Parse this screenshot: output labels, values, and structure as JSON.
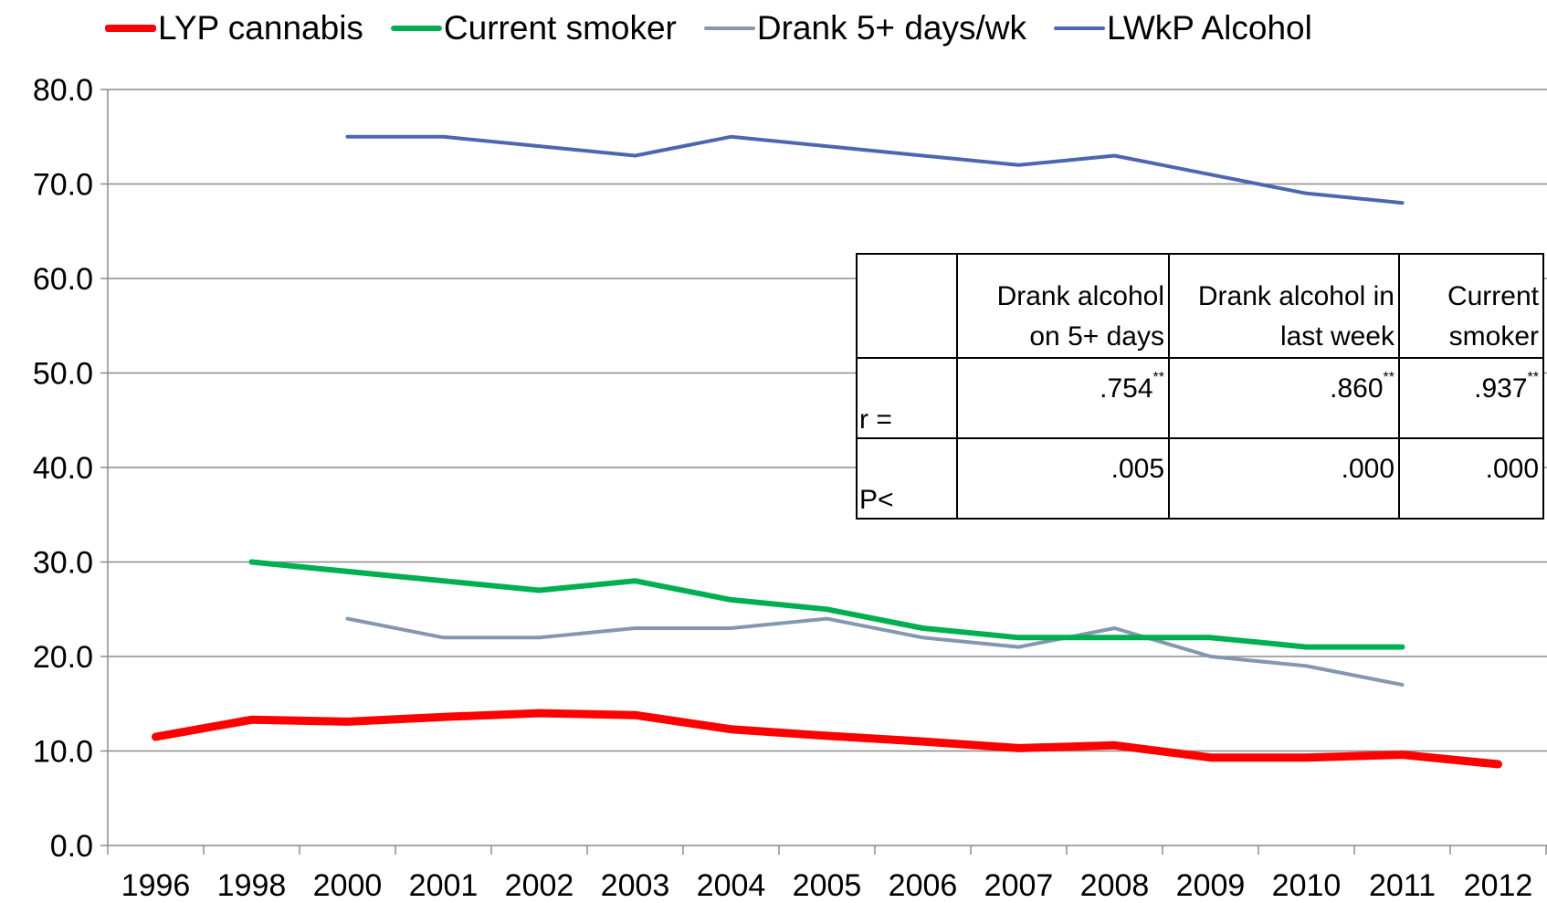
{
  "chart_data": {
    "type": "line",
    "categories": [
      "1996",
      "1998",
      "2000",
      "2001",
      "2002",
      "2003",
      "2004",
      "2005",
      "2006",
      "2007",
      "2008",
      "2009",
      "2010",
      "2011",
      "2012"
    ],
    "ylim": [
      0,
      80
    ],
    "yticks": [
      "0.0",
      "10.0",
      "20.0",
      "30.0",
      "40.0",
      "50.0",
      "60.0",
      "70.0",
      "80.0"
    ],
    "grid": true,
    "legend_position": "top",
    "series": [
      {
        "name": "LYP cannabis",
        "color": "#ff0000",
        "values": [
          11.5,
          13.3,
          13.1,
          13.6,
          14.0,
          13.8,
          12.3,
          11.6,
          11.0,
          10.3,
          10.6,
          9.3,
          9.3,
          9.6,
          8.6
        ]
      },
      {
        "name": "Current smoker",
        "color": "#00b050",
        "values": [
          null,
          30,
          29,
          28,
          27,
          28,
          26,
          25,
          23,
          22,
          22,
          22,
          21,
          21,
          null
        ]
      },
      {
        "name": "Drank 5+ days/wk",
        "color": "#8497b0",
        "values": [
          null,
          null,
          24,
          22,
          22,
          23,
          23,
          24,
          22,
          21,
          23,
          20,
          19,
          17,
          null
        ]
      },
      {
        "name": "LWkP Alcohol",
        "color": "#4a67b0",
        "values": [
          null,
          null,
          75,
          75,
          74,
          73,
          75,
          74,
          73,
          72,
          73,
          71,
          69,
          68,
          null
        ]
      }
    ]
  },
  "table": {
    "headers": [
      "",
      "Drank alcohol on 5+ days",
      "Drank alcohol in last week",
      "Current smoker"
    ],
    "rows": [
      {
        "label": "r =",
        "values": [
          ".754",
          ".860",
          ".937"
        ],
        "marks": [
          "**",
          "**",
          "**"
        ]
      },
      {
        "label": "P<",
        "values": [
          ".005",
          ".000",
          ".000"
        ],
        "marks": [
          "",
          "",
          ""
        ]
      }
    ]
  }
}
